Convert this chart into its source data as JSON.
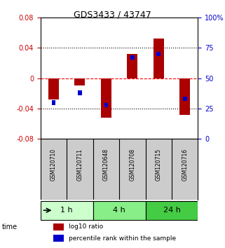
{
  "title": "GDS3433 / 43747",
  "samples": [
    "GSM120710",
    "GSM120711",
    "GSM120648",
    "GSM120708",
    "GSM120715",
    "GSM120716"
  ],
  "log10_ratio": [
    -0.028,
    -0.01,
    -0.052,
    0.032,
    0.052,
    -0.048
  ],
  "percentile_rank": [
    0.3,
    0.38,
    0.28,
    0.67,
    0.7,
    0.33
  ],
  "groups": [
    {
      "label": "1 h",
      "indices": [
        0,
        1
      ],
      "color": "#ccffcc"
    },
    {
      "label": "4 h",
      "indices": [
        2,
        3
      ],
      "color": "#88ee88"
    },
    {
      "label": "24 h",
      "indices": [
        4,
        5
      ],
      "color": "#44cc44"
    }
  ],
  "bar_color": "#aa0000",
  "percentile_color": "#0000cc",
  "ylim": [
    -0.08,
    0.08
  ],
  "yticks_left": [
    -0.08,
    -0.04,
    0.0,
    0.04,
    0.08
  ],
  "yticks_right": [
    0,
    25,
    50,
    75,
    100
  ],
  "hlines": [
    -0.04,
    0.0,
    0.04
  ],
  "hline_styles": [
    "dotted",
    "dashed",
    "dotted"
  ],
  "background_color": "#ffffff",
  "plot_bg": "#ffffff",
  "label_log10": "log10 ratio",
  "label_pct": "percentile rank within the sample",
  "time_label": "time"
}
